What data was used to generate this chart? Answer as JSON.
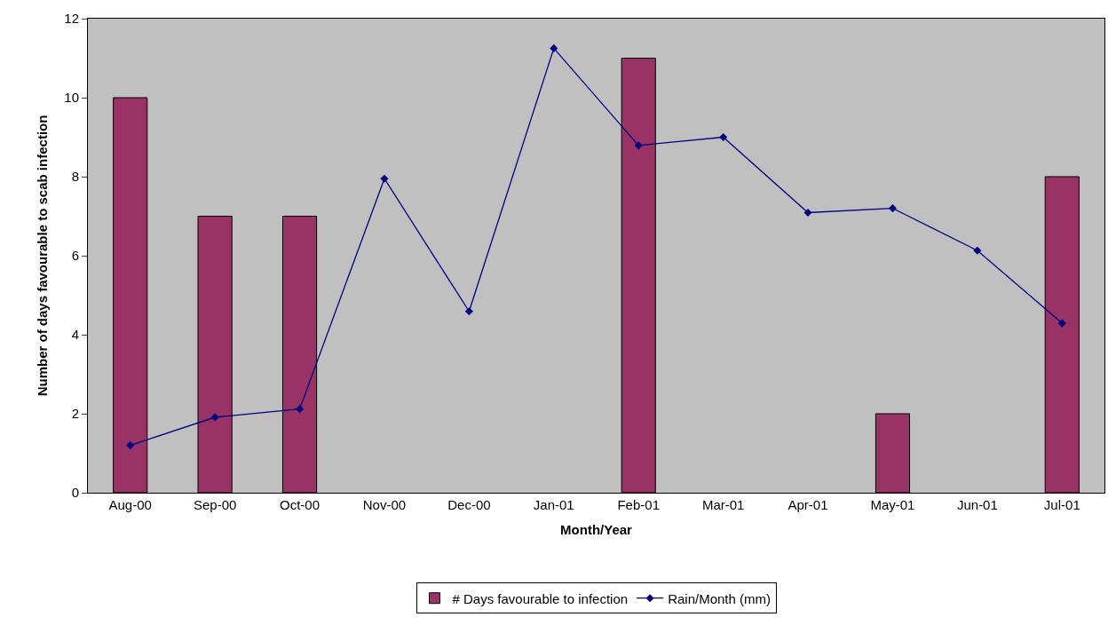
{
  "chart_data": {
    "type": "bar",
    "xlabel": "Month/Year",
    "ylabel": "Number of days favourable to scab infection",
    "categories": [
      "Aug-00",
      "Sep-00",
      "Oct-00",
      "Nov-00",
      "Dec-00",
      "Jan-01",
      "Feb-01",
      "Mar-01",
      "Apr-01",
      "May-01",
      "Jun-01",
      "Jul-01"
    ],
    "series": [
      {
        "name": "# Days favourable to infection",
        "color": "#993366",
        "values": [
          10,
          7,
          7,
          null,
          null,
          null,
          11,
          null,
          null,
          2,
          null,
          8
        ]
      },
      {
        "name": "Rain/Month (mm)",
        "type": "line",
        "color": "#000080",
        "marker": "diamond",
        "values": [
          1.2,
          1.91,
          2.12,
          7.95,
          4.59,
          11.25,
          8.79,
          9.0,
          7.09,
          7.2,
          6.13,
          4.29
        ]
      }
    ],
    "ylim": [
      0,
      12
    ],
    "yticks": [
      0,
      2,
      4,
      6,
      8,
      10,
      12
    ],
    "grid": false,
    "legend": "bottom"
  }
}
